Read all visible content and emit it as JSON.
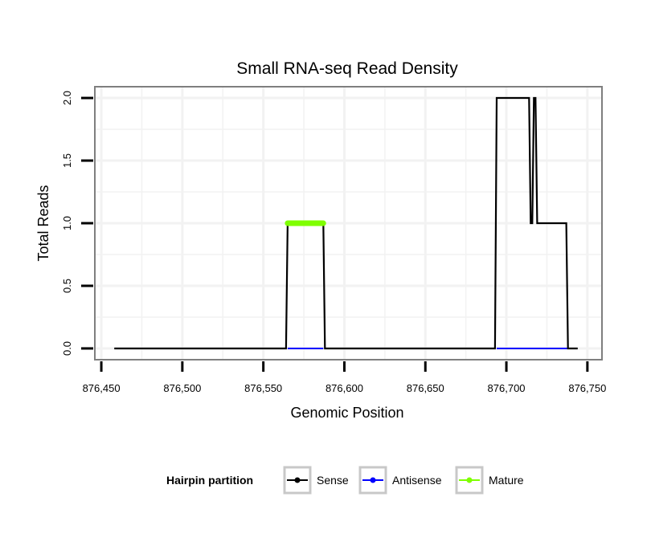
{
  "chart_data": {
    "type": "line",
    "title": "Small RNA-seq Read Density",
    "xlabel": "Genomic Position",
    "ylabel": "Total Reads",
    "xlim": [
      876446,
      876759
    ],
    "ylim": [
      -0.09,
      2.09
    ],
    "x_ticks": [
      876450,
      876500,
      876550,
      876600,
      876650,
      876700,
      876750
    ],
    "x_tick_labels": [
      "876,450",
      "876,500",
      "876,550",
      "876,600",
      "876,650",
      "876,700",
      "876,750"
    ],
    "y_ticks": [
      0,
      0.5,
      1,
      1.5,
      2
    ],
    "y_tick_labels": [
      "0.0",
      "0.5",
      "1.0",
      "1.5",
      "2.0"
    ],
    "grid": true,
    "legend": {
      "title": "Hairpin partition",
      "position": "bottom",
      "entries": [
        {
          "name": "Sense",
          "color": "#000000"
        },
        {
          "name": "Antisense",
          "color": "#0000ff"
        },
        {
          "name": "Mature",
          "color": "#7fff00"
        }
      ]
    },
    "series": [
      {
        "name": "Sense",
        "color": "#000000",
        "x": [
          876458,
          876564,
          876565,
          876587,
          876588,
          876693,
          876694,
          876714,
          876715,
          876716,
          876717,
          876718,
          876719,
          876737,
          876738,
          876744
        ],
        "y": [
          0,
          0,
          1,
          1,
          0,
          0,
          2,
          2,
          1,
          1,
          2,
          2,
          1,
          1,
          0,
          0
        ]
      },
      {
        "name": "Antisense",
        "color": "#0000ff",
        "x": [
          876565,
          876587,
          876694,
          876738
        ],
        "y": [
          0,
          0,
          0,
          0
        ],
        "segments": [
          [
            876565,
            876587
          ],
          [
            876694,
            876738
          ]
        ]
      },
      {
        "name": "Mature",
        "color": "#7fff00",
        "x": [
          876565,
          876587
        ],
        "y": [
          1,
          1
        ]
      }
    ]
  }
}
